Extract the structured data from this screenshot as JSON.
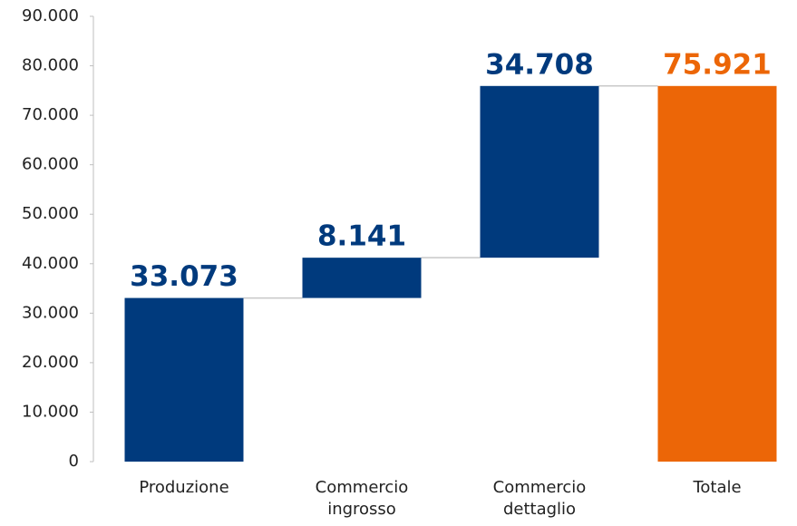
{
  "chart_data": {
    "type": "waterfall",
    "categories": [
      "Produzione",
      "Commercio ingrosso",
      "Commercio dettaglio",
      "Totale"
    ],
    "values": [
      33073,
      8141,
      34708,
      75921
    ],
    "value_labels": [
      "33.073",
      "8.141",
      "34.708",
      "75.921"
    ],
    "totals": [
      false,
      false,
      false,
      true
    ],
    "color": "#003a7d",
    "total_color": "#ec6607",
    "ylim": [
      0,
      90000
    ],
    "yticks": [
      0,
      {
        "value": 10000,
        "label": "10.000"
      },
      {
        "value": 20000,
        "label": "20.000"
      },
      {
        "value": 30000,
        "label": "30.000"
      },
      {
        "value": 40000,
        "label": "40.000"
      },
      {
        "value": 50000,
        "label": "50.000"
      },
      {
        "value": 60000,
        "label": "60.000"
      },
      {
        "value": 70000,
        "label": "70.000"
      },
      {
        "value": 80000,
        "label": "80.000"
      },
      {
        "value": 90000,
        "label": "90.000"
      }
    ],
    "grid": false
  }
}
